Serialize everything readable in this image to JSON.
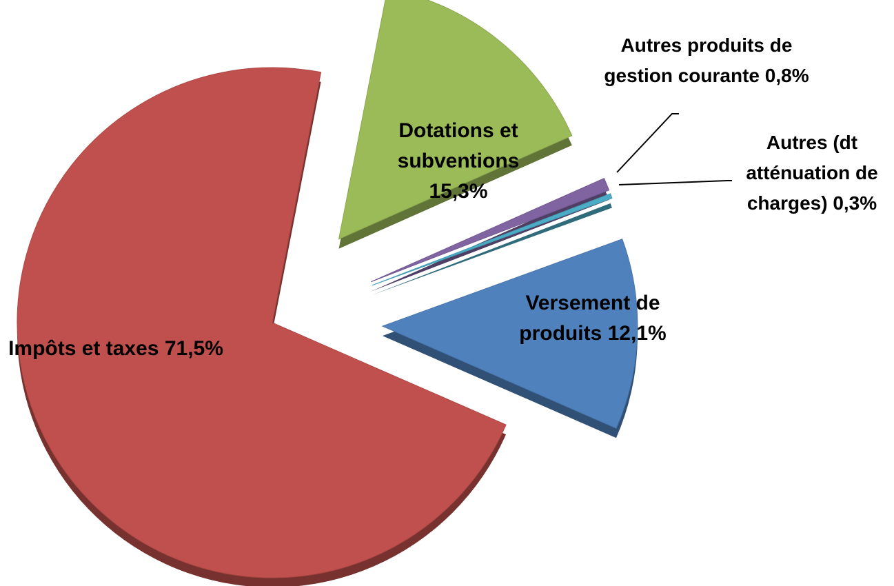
{
  "chart_data": {
    "type": "pie",
    "categories": [
      "Dotations et subventions",
      "Autres produits de gestion courante",
      "Autres (dt atténuation de charges)",
      "Versement de produits",
      "Impôts et taxes"
    ],
    "values": [
      15.3,
      0.8,
      0.3,
      12.1,
      71.5
    ],
    "value_labels": [
      "15,3%",
      "0,8%",
      "0,3%",
      "12,1%",
      "71,5%"
    ],
    "colors": [
      "#9bbb59",
      "#8064a2",
      "#4bacc6",
      "#4f81bd",
      "#c0504d"
    ]
  }
}
